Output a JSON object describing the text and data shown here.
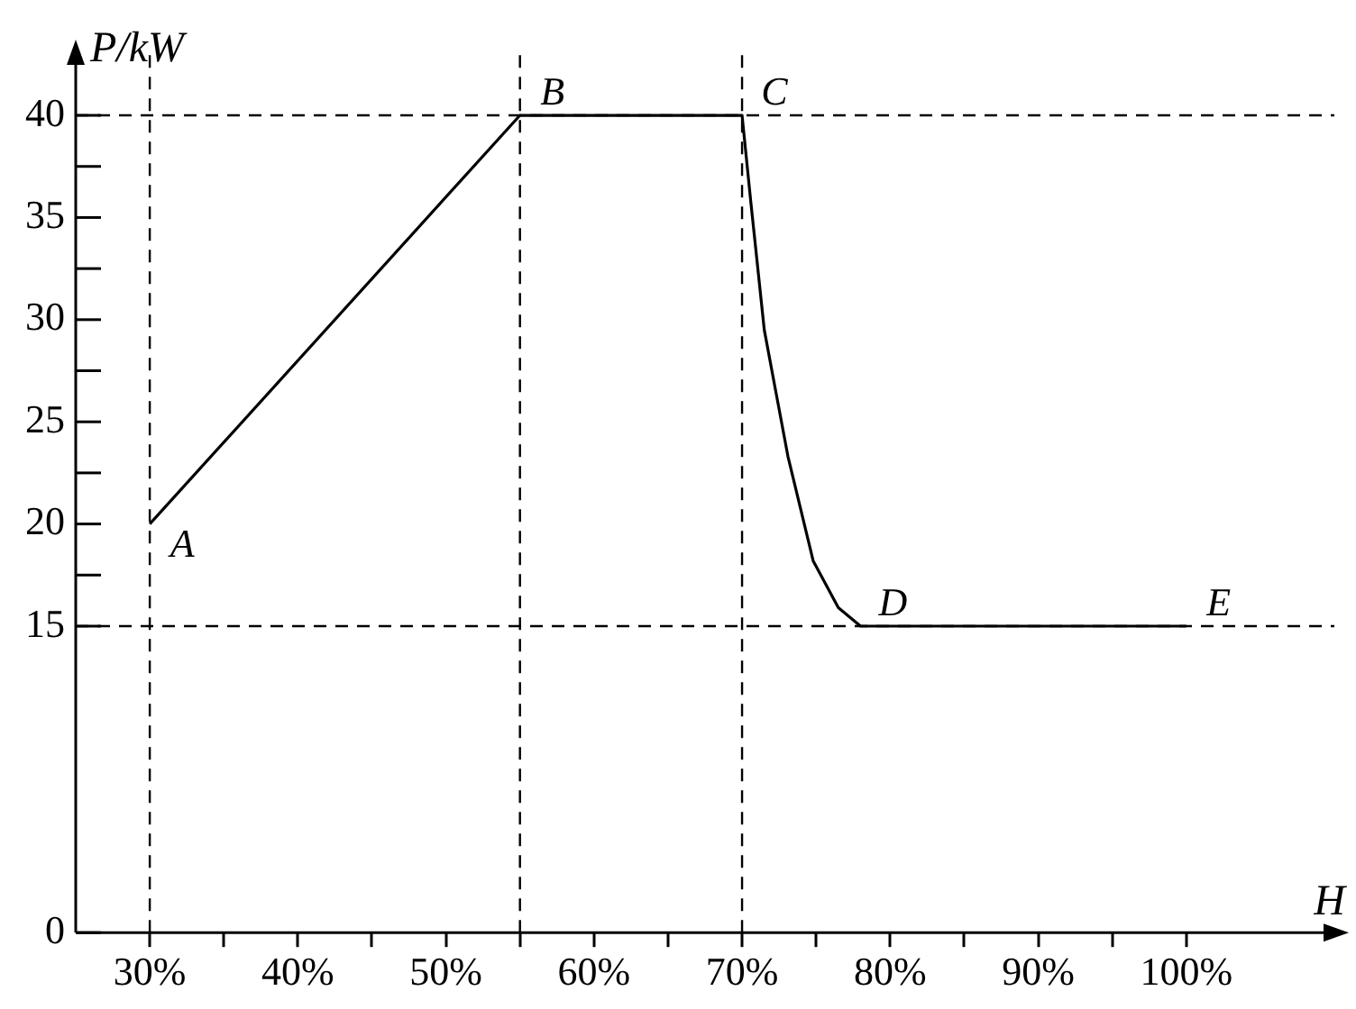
{
  "chart_data": {
    "type": "line",
    "xlabel": "H",
    "ylabel": "P/kW",
    "series": [
      {
        "color": "#000000",
        "x": [
          30,
          55,
          70,
          70.6,
          71.5,
          72.3,
          73.1,
          74.8,
          76.5,
          78,
          100
        ],
        "values": [
          20,
          40,
          40,
          35.7,
          29.5,
          26.4,
          23.3,
          18.2,
          15.9,
          15,
          15
        ]
      }
    ],
    "xlim": [
      25,
      110
    ],
    "ylim": [
      0,
      43
    ],
    "xticks": [
      {
        "value": 30,
        "label": "30%"
      },
      {
        "value": 35,
        "label": null
      },
      {
        "value": 40,
        "label": "40%"
      },
      {
        "value": 45,
        "label": null
      },
      {
        "value": 50,
        "label": "50%"
      },
      {
        "value": 55,
        "label": null
      },
      {
        "value": 60,
        "label": "60%"
      },
      {
        "value": 65,
        "label": null
      },
      {
        "value": 70,
        "label": "70%"
      },
      {
        "value": 75,
        "label": null
      },
      {
        "value": 80,
        "label": "80%"
      },
      {
        "value": 85,
        "label": null
      },
      {
        "value": 90,
        "label": "90%"
      },
      {
        "value": 95,
        "label": null
      },
      {
        "value": 100,
        "label": "100%"
      }
    ],
    "yticks": [
      0,
      15,
      {
        "value": 17.5,
        "label": null
      },
      20,
      {
        "value": 22.5,
        "label": null
      },
      25,
      {
        "value": 27.5,
        "label": null
      },
      30,
      {
        "value": 32.5,
        "label": null
      },
      35,
      {
        "value": 37.5,
        "label": null
      },
      40
    ],
    "ref_lines": [
      {
        "axis": "y",
        "value": 40,
        "line_style": "dashed"
      },
      {
        "axis": "y",
        "value": 15,
        "line_style": "dashed"
      },
      {
        "axis": "x",
        "value": 30,
        "line_style": "dashed"
      },
      {
        "axis": "x",
        "value": 55,
        "line_style": "dashed"
      },
      {
        "axis": "x",
        "value": 70,
        "line_style": "dashed"
      }
    ],
    "annotations": [
      {
        "text": "A",
        "x": 30,
        "y": 20
      },
      {
        "text": "B",
        "x": 55,
        "y": 40
      },
      {
        "text": "C",
        "x": 70,
        "y": 40
      },
      {
        "text": "D",
        "x": 78,
        "y": 15
      },
      {
        "text": "E",
        "x": 100,
        "y": 15
      }
    ],
    "grid": false,
    "legend": false,
    "marker": "none",
    "line_style": "solid"
  }
}
